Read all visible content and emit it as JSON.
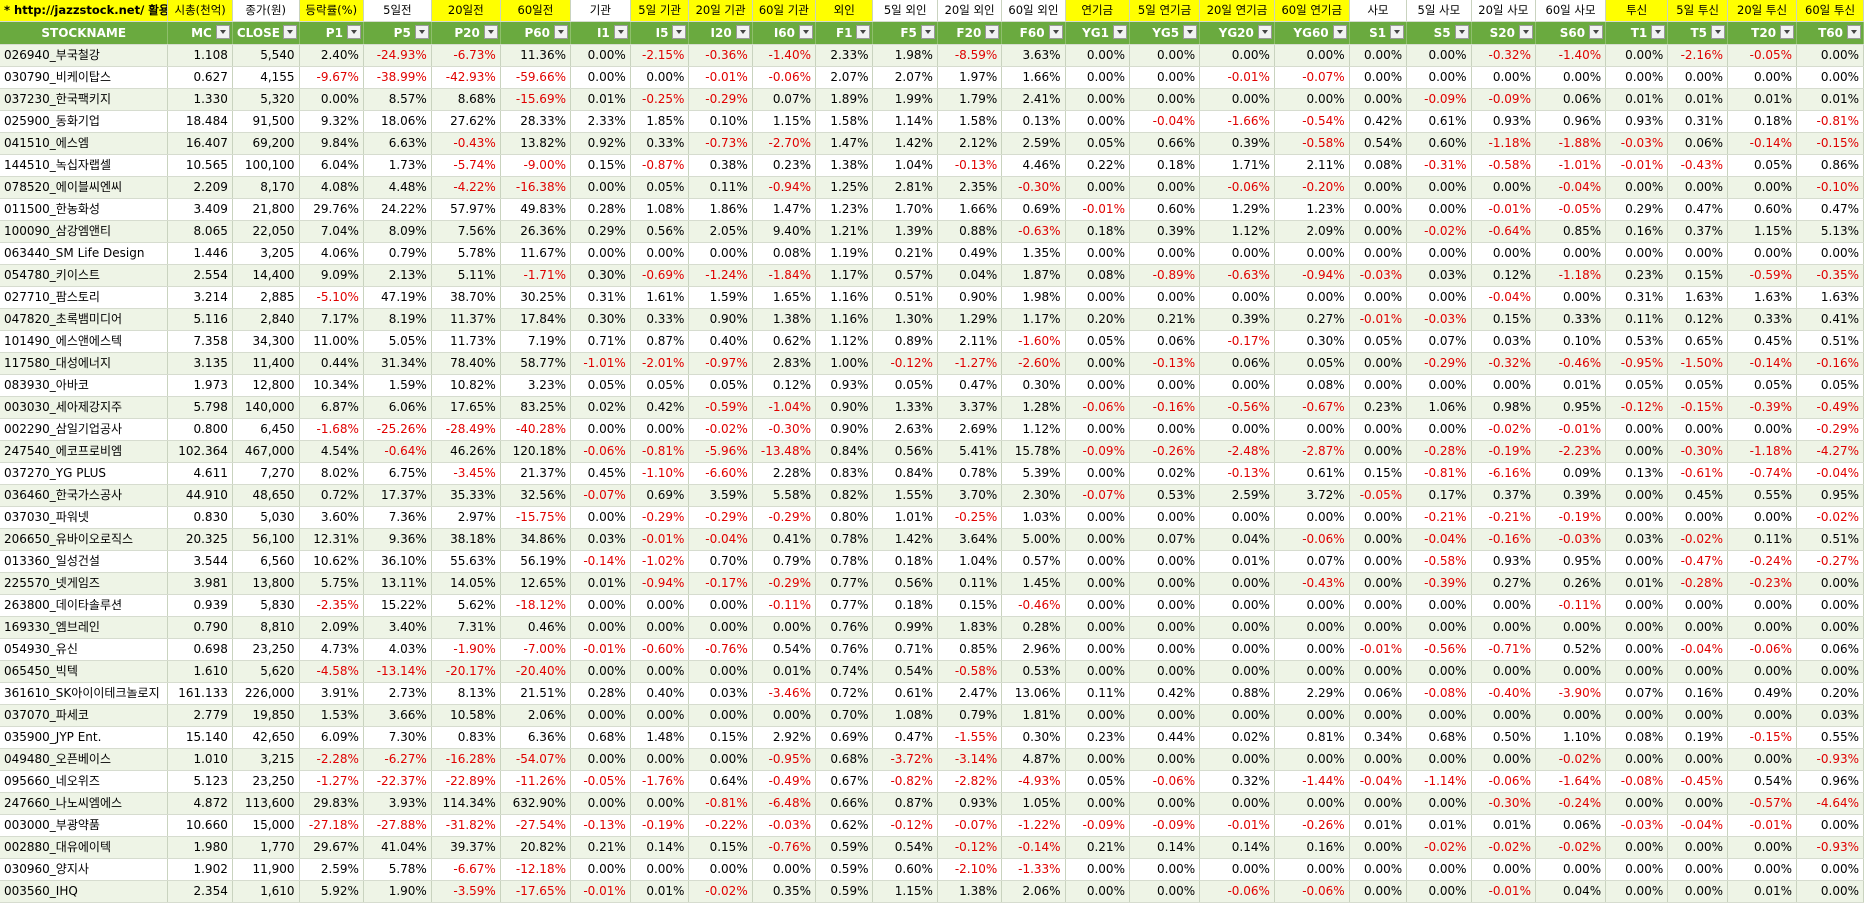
{
  "title_link": "* http://jazzstock.net/ 활용",
  "group_headers": [
    "시총(천억)",
    "종가(원)",
    "등락률(%)",
    "5일전",
    "20일전",
    "60일전",
    "기관",
    "5일 기관",
    "20일 기관",
    "60일 기관",
    "외인",
    "5일 외인",
    "20일 외인",
    "60일 외인",
    "연기금",
    "5일 연기금",
    "20일 연기금",
    "60일 연기금",
    "사모",
    "5일 사모",
    "20일 사모",
    "60일 사모",
    "투신",
    "5일 투신",
    "20일 투신",
    "60일 투신"
  ],
  "group_header_colors": [
    "y",
    "w",
    "y",
    "w",
    "y",
    "y",
    "w",
    "y",
    "y",
    "y",
    "y",
    "w",
    "w",
    "w",
    "y",
    "y",
    "y",
    "y",
    "w",
    "w",
    "w",
    "w",
    "y",
    "y",
    "y",
    "y"
  ],
  "columns": [
    "STOCKNAME",
    "MC",
    "CLOSE",
    "P1",
    "P5",
    "P20",
    "P60",
    "I1",
    "I5",
    "I20",
    "I60",
    "F1",
    "F5",
    "F20",
    "F60",
    "YG1",
    "YG5",
    "YG20",
    "YG60",
    "S1",
    "S5",
    "S20",
    "S60",
    "T1",
    "T5",
    "T20",
    "T60"
  ],
  "rows": [
    [
      "026940_부국철강",
      "1.108",
      "5,540",
      "2.40%",
      "-24.93%",
      "-6.73%",
      "11.36%",
      "0.00%",
      "-2.15%",
      "-0.36%",
      "-1.40%",
      "2.33%",
      "1.98%",
      "-8.59%",
      "3.63%",
      "0.00%",
      "0.00%",
      "0.00%",
      "0.00%",
      "0.00%",
      "0.00%",
      "-0.32%",
      "-1.40%",
      "0.00%",
      "-2.16%",
      "-0.05%",
      "0.00%"
    ],
    [
      "030790_비케이탑스",
      "0.627",
      "4,155",
      "-9.67%",
      "-38.99%",
      "-42.93%",
      "-59.66%",
      "0.00%",
      "0.00%",
      "-0.01%",
      "-0.06%",
      "2.07%",
      "2.07%",
      "1.97%",
      "1.66%",
      "0.00%",
      "0.00%",
      "-0.01%",
      "-0.07%",
      "0.00%",
      "0.00%",
      "0.00%",
      "0.00%",
      "0.00%",
      "0.00%",
      "0.00%",
      "0.00%"
    ],
    [
      "037230_한국팩키지",
      "1.330",
      "5,320",
      "0.00%",
      "8.57%",
      "8.68%",
      "-15.69%",
      "0.01%",
      "-0.25%",
      "-0.29%",
      "0.07%",
      "1.89%",
      "1.99%",
      "1.79%",
      "2.41%",
      "0.00%",
      "0.00%",
      "0.00%",
      "0.00%",
      "0.00%",
      "-0.09%",
      "-0.09%",
      "0.06%",
      "0.01%",
      "0.01%",
      "0.01%",
      "0.01%"
    ],
    [
      "025900_동화기업",
      "18.484",
      "91,500",
      "9.32%",
      "18.06%",
      "27.62%",
      "28.33%",
      "2.33%",
      "1.85%",
      "0.10%",
      "1.15%",
      "1.58%",
      "1.14%",
      "1.58%",
      "0.13%",
      "0.00%",
      "-0.04%",
      "-1.66%",
      "-0.54%",
      "0.42%",
      "0.61%",
      "0.93%",
      "0.96%",
      "0.93%",
      "0.31%",
      "0.18%",
      "-0.81%"
    ],
    [
      "041510_에스엠",
      "16.407",
      "69,200",
      "9.84%",
      "6.63%",
      "-0.43%",
      "13.82%",
      "0.92%",
      "0.33%",
      "-0.73%",
      "-2.70%",
      "1.47%",
      "1.42%",
      "2.12%",
      "2.59%",
      "0.05%",
      "0.66%",
      "0.39%",
      "-0.58%",
      "0.54%",
      "0.60%",
      "-1.18%",
      "-1.88%",
      "-0.03%",
      "0.06%",
      "-0.14%",
      "-0.15%"
    ],
    [
      "144510_녹십자랩셀",
      "10.565",
      "100,100",
      "6.04%",
      "1.73%",
      "-5.74%",
      "-9.00%",
      "0.15%",
      "-0.87%",
      "0.38%",
      "0.23%",
      "1.38%",
      "1.04%",
      "-0.13%",
      "4.46%",
      "0.22%",
      "0.18%",
      "1.71%",
      "2.11%",
      "0.08%",
      "-0.31%",
      "-0.58%",
      "-1.01%",
      "-0.01%",
      "-0.43%",
      "0.05%",
      "0.86%"
    ],
    [
      "078520_에이블씨엔씨",
      "2.209",
      "8,170",
      "4.08%",
      "4.48%",
      "-4.22%",
      "-16.38%",
      "0.00%",
      "0.05%",
      "0.11%",
      "-0.94%",
      "1.25%",
      "2.81%",
      "2.35%",
      "-0.30%",
      "0.00%",
      "0.00%",
      "-0.06%",
      "-0.20%",
      "0.00%",
      "0.00%",
      "0.00%",
      "-0.04%",
      "0.00%",
      "0.00%",
      "0.00%",
      "-0.10%"
    ],
    [
      "011500_한농화성",
      "3.409",
      "21,800",
      "29.76%",
      "24.22%",
      "57.97%",
      "49.83%",
      "0.28%",
      "1.08%",
      "1.86%",
      "1.47%",
      "1.23%",
      "1.70%",
      "1.66%",
      "0.69%",
      "-0.01%",
      "0.60%",
      "1.29%",
      "1.23%",
      "0.00%",
      "0.00%",
      "-0.01%",
      "-0.05%",
      "0.29%",
      "0.47%",
      "0.60%",
      "0.47%"
    ],
    [
      "100090_삼강엠앤티",
      "8.065",
      "22,050",
      "7.04%",
      "8.09%",
      "7.56%",
      "26.36%",
      "0.29%",
      "0.56%",
      "2.05%",
      "9.40%",
      "1.21%",
      "1.39%",
      "0.88%",
      "-0.63%",
      "0.18%",
      "0.39%",
      "1.12%",
      "2.09%",
      "0.00%",
      "-0.02%",
      "-0.64%",
      "0.85%",
      "0.16%",
      "0.37%",
      "1.15%",
      "5.13%"
    ],
    [
      "063440_SM Life Design",
      "1.446",
      "3,205",
      "4.06%",
      "0.79%",
      "5.78%",
      "11.67%",
      "0.00%",
      "0.00%",
      "0.00%",
      "0.08%",
      "1.19%",
      "0.21%",
      "0.49%",
      "1.35%",
      "0.00%",
      "0.00%",
      "0.00%",
      "0.00%",
      "0.00%",
      "0.00%",
      "0.00%",
      "0.00%",
      "0.00%",
      "0.00%",
      "0.00%",
      "0.00%"
    ],
    [
      "054780_키이스트",
      "2.554",
      "14,400",
      "9.09%",
      "2.13%",
      "5.11%",
      "-1.71%",
      "0.30%",
      "-0.69%",
      "-1.24%",
      "-1.84%",
      "1.17%",
      "0.57%",
      "0.04%",
      "1.87%",
      "0.08%",
      "-0.89%",
      "-0.63%",
      "-0.94%",
      "-0.03%",
      "0.03%",
      "0.12%",
      "-1.18%",
      "0.23%",
      "0.15%",
      "-0.59%",
      "-0.35%"
    ],
    [
      "027710_팜스토리",
      "3.214",
      "2,885",
      "-5.10%",
      "47.19%",
      "38.70%",
      "30.25%",
      "0.31%",
      "1.61%",
      "1.59%",
      "1.65%",
      "1.16%",
      "0.51%",
      "0.90%",
      "1.98%",
      "0.00%",
      "0.00%",
      "0.00%",
      "0.00%",
      "0.00%",
      "0.00%",
      "-0.04%",
      "0.00%",
      "0.31%",
      "1.63%",
      "1.63%",
      "1.63%"
    ],
    [
      "047820_초록뱀미디어",
      "5.116",
      "2,840",
      "7.17%",
      "8.19%",
      "11.37%",
      "17.84%",
      "0.30%",
      "0.33%",
      "0.90%",
      "1.38%",
      "1.16%",
      "1.30%",
      "1.29%",
      "1.17%",
      "0.20%",
      "0.21%",
      "0.39%",
      "0.27%",
      "-0.01%",
      "-0.03%",
      "0.15%",
      "0.33%",
      "0.11%",
      "0.12%",
      "0.33%",
      "0.41%"
    ],
    [
      "101490_에스앤에스텍",
      "7.358",
      "34,300",
      "11.00%",
      "5.05%",
      "11.73%",
      "7.19%",
      "0.71%",
      "0.87%",
      "0.40%",
      "0.62%",
      "1.12%",
      "0.89%",
      "2.11%",
      "-1.60%",
      "0.05%",
      "0.06%",
      "-0.17%",
      "0.30%",
      "0.05%",
      "0.07%",
      "0.03%",
      "0.10%",
      "0.53%",
      "0.65%",
      "0.45%",
      "0.51%"
    ],
    [
      "117580_대성에너지",
      "3.135",
      "11,400",
      "0.44%",
      "31.34%",
      "78.40%",
      "58.77%",
      "-1.01%",
      "-2.01%",
      "-0.97%",
      "2.83%",
      "1.00%",
      "-0.12%",
      "-1.27%",
      "-2.60%",
      "0.00%",
      "-0.13%",
      "0.06%",
      "0.05%",
      "0.00%",
      "-0.29%",
      "-0.32%",
      "-0.46%",
      "-0.95%",
      "-1.50%",
      "-0.14%",
      "-0.16%"
    ],
    [
      "083930_아바코",
      "1.973",
      "12,800",
      "10.34%",
      "1.59%",
      "10.82%",
      "3.23%",
      "0.05%",
      "0.05%",
      "0.05%",
      "0.12%",
      "0.93%",
      "0.05%",
      "0.47%",
      "0.30%",
      "0.00%",
      "0.00%",
      "0.00%",
      "0.08%",
      "0.00%",
      "0.00%",
      "0.00%",
      "0.01%",
      "0.05%",
      "0.05%",
      "0.05%",
      "0.05%"
    ],
    [
      "003030_세아제강지주",
      "5.798",
      "140,000",
      "6.87%",
      "6.06%",
      "17.65%",
      "83.25%",
      "0.02%",
      "0.42%",
      "-0.59%",
      "-1.04%",
      "0.90%",
      "1.33%",
      "3.37%",
      "1.28%",
      "-0.06%",
      "-0.16%",
      "-0.56%",
      "-0.67%",
      "0.23%",
      "1.06%",
      "0.98%",
      "0.95%",
      "-0.12%",
      "-0.15%",
      "-0.39%",
      "-0.49%"
    ],
    [
      "002290_삼일기업공사",
      "0.800",
      "6,450",
      "-1.68%",
      "-25.26%",
      "-28.49%",
      "-40.28%",
      "0.00%",
      "0.00%",
      "-0.02%",
      "-0.30%",
      "0.90%",
      "2.63%",
      "2.69%",
      "1.12%",
      "0.00%",
      "0.00%",
      "0.00%",
      "0.00%",
      "0.00%",
      "0.00%",
      "-0.02%",
      "-0.01%",
      "0.00%",
      "0.00%",
      "0.00%",
      "-0.29%"
    ],
    [
      "247540_에코프로비엠",
      "102.364",
      "467,000",
      "4.54%",
      "-0.64%",
      "46.26%",
      "120.18%",
      "-0.06%",
      "-0.81%",
      "-5.96%",
      "-13.48%",
      "0.84%",
      "0.56%",
      "5.41%",
      "15.78%",
      "-0.09%",
      "-0.26%",
      "-2.48%",
      "-2.87%",
      "0.00%",
      "-0.28%",
      "-0.19%",
      "-2.23%",
      "0.00%",
      "-0.30%",
      "-1.18%",
      "-4.27%"
    ],
    [
      "037270_YG PLUS",
      "4.611",
      "7,270",
      "8.02%",
      "6.75%",
      "-3.45%",
      "21.37%",
      "0.45%",
      "-1.10%",
      "-6.60%",
      "2.28%",
      "0.83%",
      "0.84%",
      "0.78%",
      "5.39%",
      "0.00%",
      "0.02%",
      "-0.13%",
      "0.61%",
      "0.15%",
      "-0.81%",
      "-6.16%",
      "0.09%",
      "0.13%",
      "-0.61%",
      "-0.74%",
      "-0.04%"
    ],
    [
      "036460_한국가스공사",
      "44.910",
      "48,650",
      "0.72%",
      "17.37%",
      "35.33%",
      "32.56%",
      "-0.07%",
      "0.69%",
      "3.59%",
      "5.58%",
      "0.82%",
      "1.55%",
      "3.70%",
      "2.30%",
      "-0.07%",
      "0.53%",
      "2.59%",
      "3.72%",
      "-0.05%",
      "0.17%",
      "0.37%",
      "0.39%",
      "0.00%",
      "0.45%",
      "0.55%",
      "0.95%"
    ],
    [
      "037030_파워넷",
      "0.830",
      "5,030",
      "3.60%",
      "7.36%",
      "2.97%",
      "-15.75%",
      "0.00%",
      "-0.29%",
      "-0.29%",
      "-0.29%",
      "0.80%",
      "1.01%",
      "-0.25%",
      "1.03%",
      "0.00%",
      "0.00%",
      "0.00%",
      "0.00%",
      "0.00%",
      "-0.21%",
      "-0.21%",
      "-0.19%",
      "0.00%",
      "0.00%",
      "0.00%",
      "-0.02%"
    ],
    [
      "206650_유바이오로직스",
      "20.325",
      "56,100",
      "12.31%",
      "9.36%",
      "38.18%",
      "34.86%",
      "0.03%",
      "-0.01%",
      "-0.04%",
      "0.41%",
      "0.78%",
      "1.42%",
      "3.64%",
      "5.00%",
      "0.00%",
      "0.07%",
      "0.04%",
      "-0.06%",
      "0.00%",
      "-0.04%",
      "-0.16%",
      "-0.03%",
      "0.03%",
      "-0.02%",
      "0.11%",
      "0.51%"
    ],
    [
      "013360_일성건설",
      "3.544",
      "6,560",
      "10.62%",
      "36.10%",
      "55.63%",
      "56.19%",
      "-0.14%",
      "-1.02%",
      "0.70%",
      "0.79%",
      "0.78%",
      "0.18%",
      "1.04%",
      "0.57%",
      "0.00%",
      "0.00%",
      "0.01%",
      "0.07%",
      "0.00%",
      "-0.58%",
      "0.93%",
      "0.95%",
      "0.00%",
      "-0.47%",
      "-0.24%",
      "-0.27%"
    ],
    [
      "225570_넷게임즈",
      "3.981",
      "13,800",
      "5.75%",
      "13.11%",
      "14.05%",
      "12.65%",
      "0.01%",
      "-0.94%",
      "-0.17%",
      "-0.29%",
      "0.77%",
      "0.56%",
      "0.11%",
      "1.45%",
      "0.00%",
      "0.00%",
      "0.00%",
      "-0.43%",
      "0.00%",
      "-0.39%",
      "0.27%",
      "0.26%",
      "0.01%",
      "-0.28%",
      "-0.23%",
      "0.00%"
    ],
    [
      "263800_데이타솔루션",
      "0.939",
      "5,830",
      "-2.35%",
      "15.22%",
      "5.62%",
      "-18.12%",
      "0.00%",
      "0.00%",
      "0.00%",
      "-0.11%",
      "0.77%",
      "0.18%",
      "0.15%",
      "-0.46%",
      "0.00%",
      "0.00%",
      "0.00%",
      "0.00%",
      "0.00%",
      "0.00%",
      "0.00%",
      "-0.11%",
      "0.00%",
      "0.00%",
      "0.00%",
      "0.00%"
    ],
    [
      "169330_엠브레인",
      "0.790",
      "8,810",
      "2.09%",
      "3.40%",
      "7.31%",
      "0.46%",
      "0.00%",
      "0.00%",
      "0.00%",
      "0.00%",
      "0.76%",
      "0.99%",
      "1.83%",
      "0.28%",
      "0.00%",
      "0.00%",
      "0.00%",
      "0.00%",
      "0.00%",
      "0.00%",
      "0.00%",
      "0.00%",
      "0.00%",
      "0.00%",
      "0.00%",
      "0.00%"
    ],
    [
      "054930_유신",
      "0.698",
      "23,250",
      "4.73%",
      "4.03%",
      "-1.90%",
      "-7.00%",
      "-0.01%",
      "-0.60%",
      "-0.76%",
      "0.54%",
      "0.76%",
      "0.71%",
      "0.85%",
      "2.96%",
      "0.00%",
      "0.00%",
      "0.00%",
      "0.00%",
      "-0.01%",
      "-0.56%",
      "-0.71%",
      "0.52%",
      "0.00%",
      "-0.04%",
      "-0.06%",
      "0.06%"
    ],
    [
      "065450_빅텍",
      "1.610",
      "5,620",
      "-4.58%",
      "-13.14%",
      "-20.17%",
      "-20.40%",
      "0.00%",
      "0.00%",
      "0.00%",
      "0.01%",
      "0.74%",
      "0.54%",
      "-0.58%",
      "0.53%",
      "0.00%",
      "0.00%",
      "0.00%",
      "0.00%",
      "0.00%",
      "0.00%",
      "0.00%",
      "0.00%",
      "0.00%",
      "0.00%",
      "0.00%",
      "0.00%"
    ],
    [
      "361610_SK아이이테크놀로지",
      "161.133",
      "226,000",
      "3.91%",
      "2.73%",
      "8.13%",
      "21.51%",
      "0.28%",
      "0.40%",
      "0.03%",
      "-3.46%",
      "0.72%",
      "0.61%",
      "2.47%",
      "13.06%",
      "0.11%",
      "0.42%",
      "0.88%",
      "2.29%",
      "0.06%",
      "-0.08%",
      "-0.40%",
      "-3.90%",
      "0.07%",
      "0.16%",
      "0.49%",
      "0.20%"
    ],
    [
      "037070_파세코",
      "2.779",
      "19,850",
      "1.53%",
      "3.66%",
      "10.58%",
      "2.06%",
      "0.00%",
      "0.00%",
      "0.00%",
      "0.00%",
      "0.70%",
      "1.08%",
      "0.79%",
      "1.81%",
      "0.00%",
      "0.00%",
      "0.00%",
      "0.00%",
      "0.00%",
      "0.00%",
      "0.00%",
      "0.00%",
      "0.00%",
      "0.00%",
      "0.00%",
      "0.03%"
    ],
    [
      "035900_JYP Ent.",
      "15.140",
      "42,650",
      "6.09%",
      "7.30%",
      "0.83%",
      "6.36%",
      "0.68%",
      "1.48%",
      "0.15%",
      "2.92%",
      "0.69%",
      "0.47%",
      "-1.55%",
      "0.30%",
      "0.23%",
      "0.44%",
      "0.02%",
      "0.81%",
      "0.34%",
      "0.68%",
      "0.50%",
      "1.10%",
      "0.08%",
      "0.19%",
      "-0.15%",
      "0.55%"
    ],
    [
      "049480_오픈베이스",
      "1.010",
      "3,215",
      "-2.28%",
      "-6.27%",
      "-16.28%",
      "-54.07%",
      "0.00%",
      "0.00%",
      "0.00%",
      "-0.95%",
      "0.68%",
      "-3.72%",
      "-3.14%",
      "4.87%",
      "0.00%",
      "0.00%",
      "0.00%",
      "0.00%",
      "0.00%",
      "0.00%",
      "0.00%",
      "-0.02%",
      "0.00%",
      "0.00%",
      "0.00%",
      "-0.93%"
    ],
    [
      "095660_네오위즈",
      "5.123",
      "23,250",
      "-1.27%",
      "-22.37%",
      "-22.89%",
      "-11.26%",
      "-0.05%",
      "-1.76%",
      "0.64%",
      "-0.49%",
      "0.67%",
      "-0.82%",
      "-2.82%",
      "-4.93%",
      "0.05%",
      "-0.06%",
      "0.32%",
      "-1.44%",
      "-0.04%",
      "-1.14%",
      "-0.06%",
      "-1.64%",
      "-0.08%",
      "-0.45%",
      "0.54%",
      "0.96%"
    ],
    [
      "247660_나노씨엠에스",
      "4.872",
      "113,600",
      "29.83%",
      "3.93%",
      "114.34%",
      "632.90%",
      "0.00%",
      "0.00%",
      "-0.81%",
      "-6.48%",
      "0.66%",
      "0.87%",
      "0.93%",
      "1.05%",
      "0.00%",
      "0.00%",
      "0.00%",
      "0.00%",
      "0.00%",
      "0.00%",
      "-0.30%",
      "-0.24%",
      "0.00%",
      "0.00%",
      "-0.57%",
      "-4.64%"
    ],
    [
      "003000_부광약품",
      "10.660",
      "15,000",
      "-27.18%",
      "-27.88%",
      "-31.82%",
      "-27.54%",
      "-0.13%",
      "-0.19%",
      "-0.22%",
      "-0.03%",
      "0.62%",
      "-0.12%",
      "-0.07%",
      "-1.22%",
      "-0.09%",
      "-0.09%",
      "-0.01%",
      "-0.26%",
      "0.01%",
      "0.01%",
      "0.01%",
      "0.06%",
      "-0.03%",
      "-0.04%",
      "-0.01%",
      "0.00%"
    ],
    [
      "002880_대유에이텍",
      "1.980",
      "1,770",
      "29.67%",
      "41.04%",
      "39.37%",
      "20.82%",
      "0.21%",
      "0.14%",
      "0.15%",
      "-0.76%",
      "0.59%",
      "0.54%",
      "-0.12%",
      "-0.14%",
      "0.21%",
      "0.14%",
      "0.14%",
      "0.16%",
      "0.00%",
      "-0.02%",
      "-0.02%",
      "-0.02%",
      "0.00%",
      "0.00%",
      "0.00%",
      "-0.93%"
    ],
    [
      "030960_양지사",
      "1.902",
      "11,900",
      "2.59%",
      "5.78%",
      "-6.67%",
      "-12.18%",
      "0.00%",
      "0.00%",
      "0.00%",
      "0.00%",
      "0.59%",
      "0.60%",
      "-2.10%",
      "-1.33%",
      "0.00%",
      "0.00%",
      "0.00%",
      "0.00%",
      "0.00%",
      "0.00%",
      "0.00%",
      "0.00%",
      "0.00%",
      "0.00%",
      "0.00%",
      "0.00%"
    ],
    [
      "003560_IHQ",
      "2.354",
      "1,610",
      "5.92%",
      "1.90%",
      "-3.59%",
      "-17.65%",
      "-0.01%",
      "0.01%",
      "-0.02%",
      "0.35%",
      "0.59%",
      "1.15%",
      "1.38%",
      "2.06%",
      "0.00%",
      "0.00%",
      "-0.06%",
      "-0.06%",
      "0.00%",
      "0.00%",
      "-0.01%",
      "0.04%",
      "0.00%",
      "0.00%",
      "0.01%",
      "0.00%"
    ]
  ]
}
